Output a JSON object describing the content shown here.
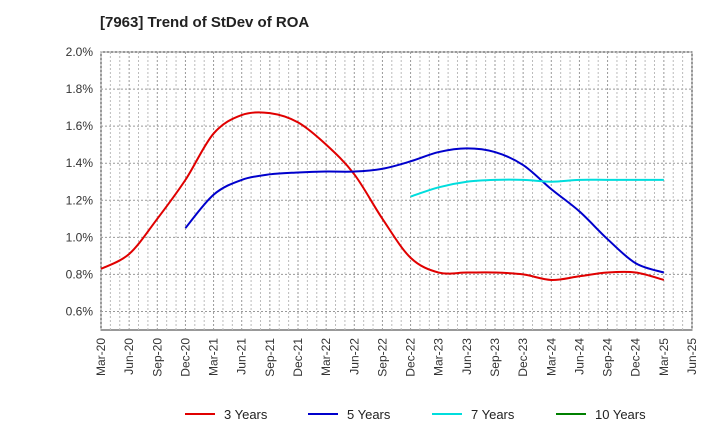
{
  "chart_data": {
    "type": "line",
    "title": "[7963]  Trend of StDev of ROA",
    "xlabel": "",
    "ylabel": "",
    "ylim": [
      0.5,
      2.0
    ],
    "y_ticks": [
      "2.0%",
      "1.8%",
      "1.6%",
      "1.4%",
      "1.2%",
      "1.0%",
      "0.8%",
      "0.6%"
    ],
    "y_tick_values": [
      2.0,
      1.8,
      1.6,
      1.4,
      1.2,
      1.0,
      0.8,
      0.6
    ],
    "grid": true,
    "legend_position": "bottom",
    "categories": [
      "Mar-20",
      "Jun-20",
      "Sep-20",
      "Dec-20",
      "Mar-21",
      "Jun-21",
      "Sep-21",
      "Dec-21",
      "Mar-22",
      "Jun-22",
      "Sep-22",
      "Dec-22",
      "Mar-23",
      "Jun-23",
      "Sep-23",
      "Dec-23",
      "Mar-24",
      "Jun-24",
      "Sep-24",
      "Dec-24",
      "Mar-25",
      "Jun-25"
    ],
    "series": [
      {
        "name": "3 Years",
        "color": "#e00000",
        "values": [
          0.83,
          0.91,
          1.1,
          1.31,
          1.56,
          1.66,
          1.67,
          1.62,
          1.5,
          1.34,
          1.1,
          0.89,
          0.81,
          0.81,
          0.81,
          0.8,
          0.77,
          0.79,
          0.81,
          0.81,
          0.77,
          null
        ]
      },
      {
        "name": "5 Years",
        "color": "#0000cc",
        "values": [
          null,
          null,
          null,
          1.05,
          1.23,
          1.31,
          1.34,
          1.35,
          1.355,
          1.355,
          1.37,
          1.41,
          1.46,
          1.48,
          1.46,
          1.39,
          1.26,
          1.14,
          0.99,
          0.86,
          0.81,
          null
        ]
      },
      {
        "name": "7 Years",
        "color": "#00dddd",
        "values": [
          null,
          null,
          null,
          null,
          null,
          null,
          null,
          null,
          null,
          null,
          null,
          1.22,
          1.27,
          1.3,
          1.31,
          1.31,
          1.3,
          1.31,
          1.31,
          1.31,
          1.31,
          null
        ]
      },
      {
        "name": "10 Years",
        "color": "#008000",
        "values": [
          null,
          null,
          null,
          null,
          null,
          null,
          null,
          null,
          null,
          null,
          null,
          null,
          null,
          null,
          null,
          null,
          null,
          null,
          null,
          null,
          null,
          null
        ]
      }
    ]
  }
}
